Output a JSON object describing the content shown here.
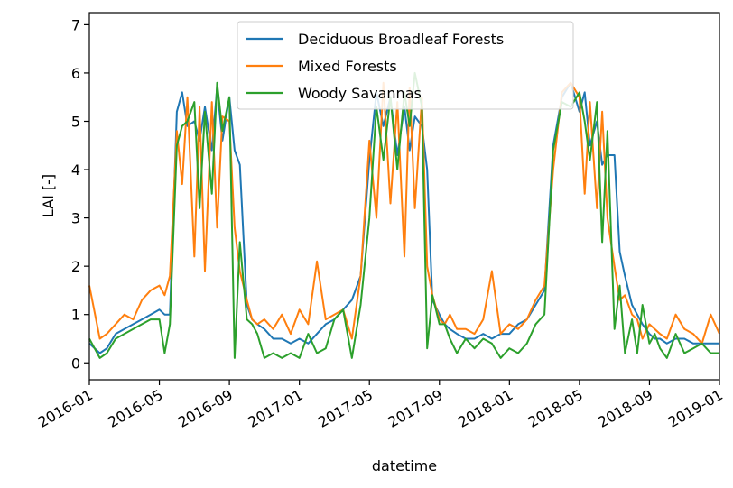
{
  "chart_data": {
    "type": "line",
    "title": "",
    "xlabel": "datetime",
    "ylabel": "LAI [-]",
    "xlim": [
      "2016-01",
      "2019-01"
    ],
    "ylim": [
      -0.35,
      7.25
    ],
    "x_ticks": [
      "2016-01",
      "2016-05",
      "2016-09",
      "2017-01",
      "2017-05",
      "2017-09",
      "2018-01",
      "2018-05",
      "2018-09",
      "2019-01"
    ],
    "y_ticks": [
      0,
      1,
      2,
      3,
      4,
      5,
      6,
      7
    ],
    "legend_position": "top-center",
    "x_month_index": [
      0,
      0.6,
      1.0,
      1.5,
      2.0,
      2.5,
      3.0,
      3.5,
      4.0,
      4.3,
      4.6,
      5.0,
      5.3,
      5.6,
      6.0,
      6.3,
      6.6,
      7.0,
      7.3,
      7.6,
      8.0,
      8.3,
      8.6,
      9.0,
      9.3,
      9.6,
      10.0,
      10.5,
      11.0,
      11.5,
      12.0,
      12.5,
      13.0,
      13.5,
      14.0,
      14.5,
      15.0,
      15.5,
      16.0,
      16.4,
      16.8,
      17.2,
      17.6,
      18.0,
      18.3,
      18.6,
      19.0,
      19.3,
      19.6,
      20.0,
      20.3,
      20.6,
      21.0,
      21.5,
      22.0,
      22.5,
      23.0,
      23.5,
      24.0,
      24.5,
      25.0,
      25.5,
      26.0,
      26.5,
      27.0,
      27.5,
      28.0,
      28.3,
      28.6,
      29.0,
      29.3,
      29.6,
      30.0,
      30.3,
      30.6,
      31.0,
      31.3,
      31.6,
      32.0,
      32.3,
      32.6,
      33.0,
      33.5,
      34.0,
      34.5,
      35.0,
      35.5,
      36.0
    ],
    "series": [
      {
        "name": "Deciduous Broadleaf Forests",
        "color": "#1f77b4",
        "values": [
          0.4,
          0.2,
          0.3,
          0.6,
          0.7,
          0.8,
          0.9,
          1.0,
          1.1,
          1.0,
          1.0,
          5.2,
          5.6,
          4.9,
          5.0,
          4.6,
          5.3,
          4.4,
          5.7,
          4.6,
          5.5,
          4.4,
          4.1,
          1.2,
          0.9,
          0.8,
          0.7,
          0.5,
          0.5,
          0.4,
          0.5,
          0.4,
          0.6,
          0.8,
          0.9,
          1.1,
          1.3,
          1.8,
          4.2,
          5.6,
          4.9,
          5.5,
          4.3,
          5.3,
          4.4,
          5.1,
          4.9,
          4.0,
          1.3,
          1.0,
          0.8,
          0.7,
          0.6,
          0.5,
          0.5,
          0.6,
          0.5,
          0.6,
          0.6,
          0.8,
          0.9,
          1.2,
          1.5,
          4.5,
          5.5,
          5.8,
          5.2,
          5.6,
          4.5,
          5.0,
          4.1,
          4.3,
          4.3,
          2.3,
          1.8,
          1.2,
          1.0,
          0.8,
          0.6,
          0.5,
          0.5,
          0.4,
          0.5,
          0.5,
          0.4,
          0.4,
          0.4,
          0.4
        ]
      },
      {
        "name": "Mixed Forests",
        "color": "#ff7f0e",
        "values": [
          1.6,
          0.5,
          0.6,
          0.8,
          1.0,
          0.9,
          1.3,
          1.5,
          1.6,
          1.4,
          1.8,
          4.8,
          3.7,
          5.5,
          2.2,
          5.3,
          1.9,
          5.4,
          2.8,
          5.1,
          5.0,
          2.8,
          1.9,
          1.3,
          0.9,
          0.8,
          0.9,
          0.7,
          1.0,
          0.6,
          1.1,
          0.8,
          2.1,
          0.9,
          1.0,
          1.1,
          0.5,
          1.8,
          4.6,
          3.0,
          5.8,
          3.3,
          5.4,
          2.2,
          5.7,
          3.2,
          5.5,
          2.0,
          1.4,
          0.9,
          0.8,
          1.0,
          0.7,
          0.7,
          0.6,
          0.9,
          1.9,
          0.6,
          0.8,
          0.7,
          0.9,
          1.3,
          1.6,
          4.0,
          5.6,
          5.8,
          5.5,
          3.5,
          5.4,
          3.2,
          5.2,
          3.0,
          2.0,
          1.3,
          1.4,
          1.0,
          0.9,
          0.5,
          0.8,
          0.7,
          0.6,
          0.5,
          1.0,
          0.7,
          0.6,
          0.4,
          1.0,
          0.6
        ]
      },
      {
        "name": "Woody Savannas",
        "color": "#2ca02c",
        "values": [
          0.5,
          0.1,
          0.2,
          0.5,
          0.6,
          0.7,
          0.8,
          0.9,
          0.9,
          0.2,
          0.8,
          4.5,
          4.9,
          5.0,
          5.4,
          3.2,
          5.2,
          3.5,
          5.8,
          4.8,
          5.5,
          0.1,
          2.5,
          0.9,
          0.8,
          0.6,
          0.1,
          0.2,
          0.1,
          0.2,
          0.1,
          0.6,
          0.2,
          0.3,
          0.9,
          1.1,
          0.1,
          1.2,
          3.0,
          5.3,
          4.2,
          5.5,
          4.0,
          5.6,
          4.9,
          6.0,
          5.3,
          0.3,
          1.4,
          0.8,
          0.8,
          0.5,
          0.2,
          0.5,
          0.3,
          0.5,
          0.4,
          0.1,
          0.3,
          0.2,
          0.4,
          0.8,
          1.0,
          4.4,
          5.4,
          5.3,
          5.6,
          5.0,
          4.2,
          5.4,
          2.5,
          4.8,
          0.7,
          1.6,
          0.2,
          0.9,
          0.2,
          1.2,
          0.4,
          0.6,
          0.3,
          0.1,
          0.6,
          0.2,
          0.3,
          0.4,
          0.2,
          0.2
        ]
      }
    ]
  }
}
